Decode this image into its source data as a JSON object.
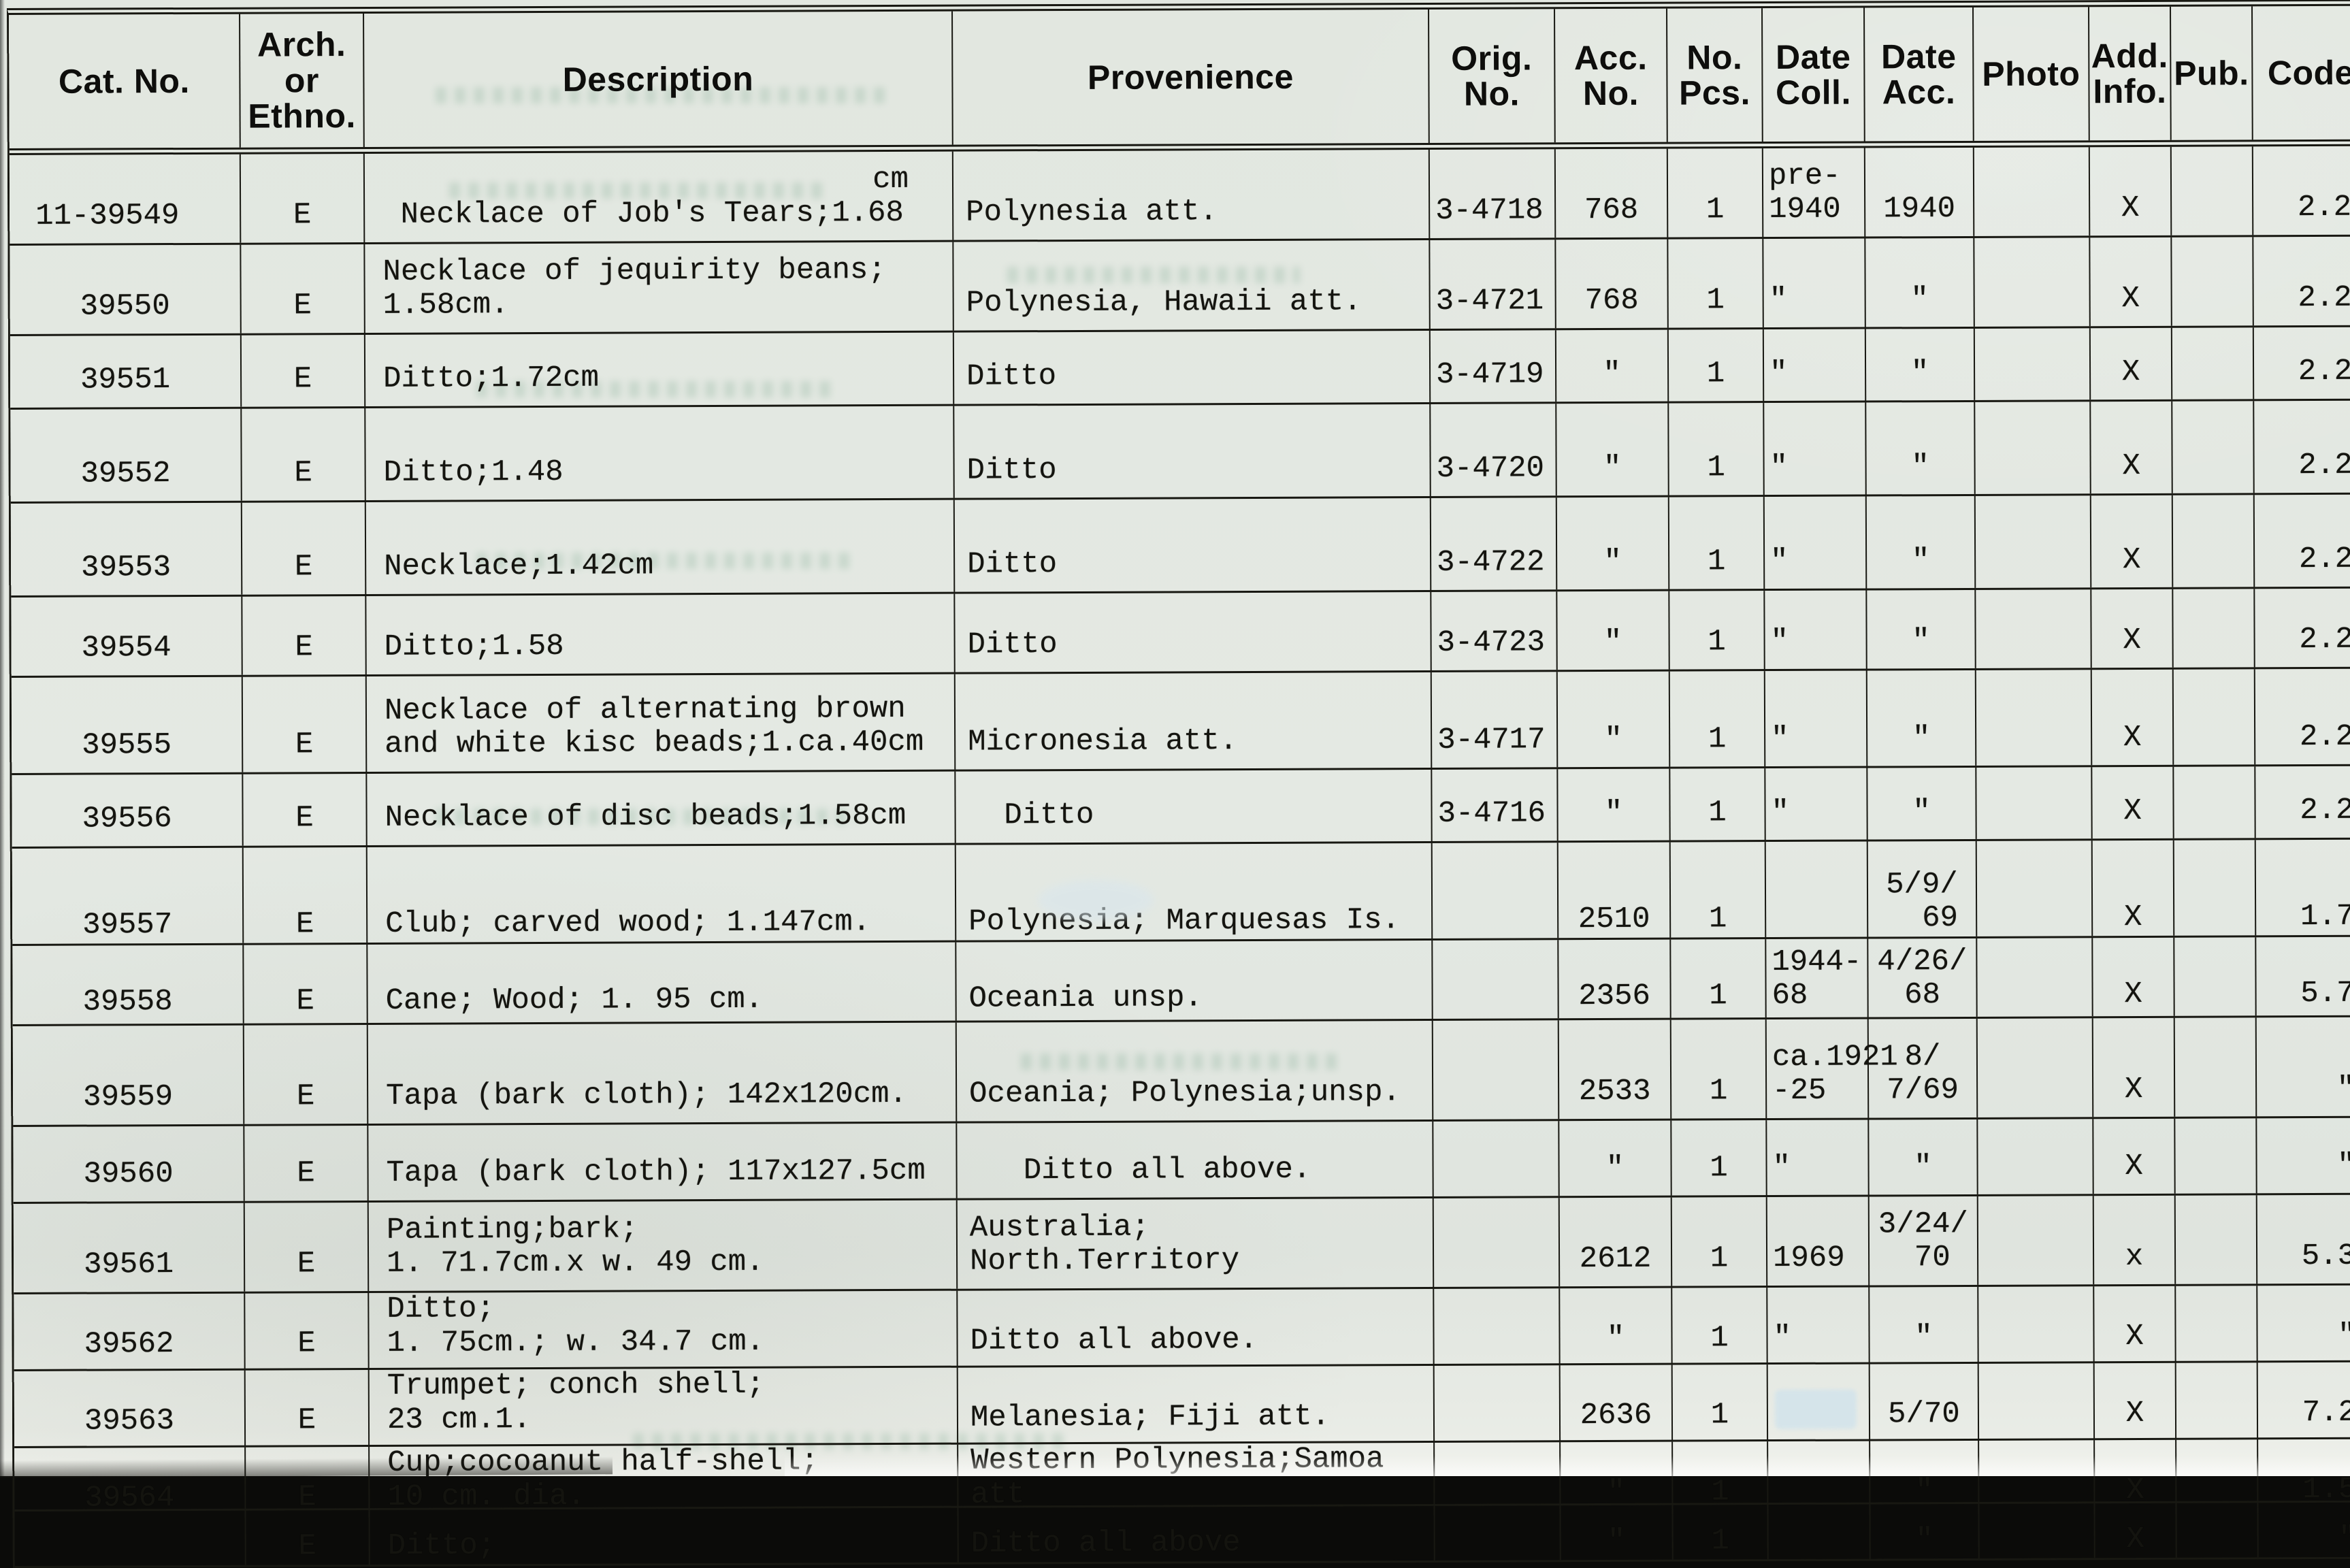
{
  "header": {
    "cols": [
      "Cat. No.",
      "Arch.\nor\nEthno.",
      "Description",
      "Provenience",
      "Orig.\nNo.",
      "Acc.\nNo.",
      "No.\nPcs.",
      "Date\nColl.",
      "Date\nAcc.",
      "Photo",
      "Add.\nInfo.",
      "Pub.",
      "Code"
    ]
  },
  "rows": [
    {
      "cat": "11-39549",
      "arch": "E",
      "desc_top": "cm",
      "desc": " Necklace of Job's Tears;1.68",
      "prov": "Polynesia att.",
      "orig": "3-4718",
      "acc": "768",
      "pcs": "1",
      "dcoll": "pre-\n1940",
      "dacc": "1940",
      "photo": "",
      "add": "X",
      "pub": "",
      "code": "2.2"
    },
    {
      "cat": "39550",
      "arch": "E",
      "desc_top": "",
      "desc": "Necklace of jequirity beans;\n1.58cm.",
      "prov": "Polynesia, Hawaii att.",
      "orig": "3-4721",
      "acc": "768",
      "pcs": "1",
      "dcoll": "\"",
      "dacc": "\"",
      "photo": "",
      "add": "X",
      "pub": "",
      "code": "2.2"
    },
    {
      "cat": "39551",
      "arch": "E",
      "desc_top": "",
      "desc": "Ditto;1.72cm",
      "prov": "Ditto",
      "orig": "3-4719",
      "acc": "\"",
      "pcs": "1",
      "dcoll": "\"",
      "dacc": "\"",
      "photo": "",
      "add": "X",
      "pub": "",
      "code": "2.2"
    },
    {
      "cat": "39552",
      "arch": "E",
      "desc_top": "",
      "desc": "Ditto;1.48",
      "prov": "Ditto",
      "orig": "3-4720",
      "acc": "\"",
      "pcs": "1",
      "dcoll": "\"",
      "dacc": "\"",
      "photo": "",
      "add": "X",
      "pub": "",
      "code": "2.2"
    },
    {
      "cat": "39553",
      "arch": "E",
      "desc_top": "",
      "desc": "Necklace;1.42cm",
      "prov": "Ditto",
      "orig": "3-4722",
      "acc": "\"",
      "pcs": "1",
      "dcoll": "\"",
      "dacc": "\"",
      "photo": "",
      "add": "X",
      "pub": "",
      "code": "2.2"
    },
    {
      "cat": "39554",
      "arch": "E",
      "desc_top": "",
      "desc": "Ditto;1.58",
      "prov": "Ditto",
      "orig": "3-4723",
      "acc": "\"",
      "pcs": "1",
      "dcoll": "\"",
      "dacc": "\"",
      "photo": "",
      "add": "X",
      "pub": "",
      "code": "2.2"
    },
    {
      "cat": "39555",
      "arch": "E",
      "desc_top": "",
      "desc": "Necklace of alternating brown\nand white kisc beads;1.ca.40cm",
      "prov": "Micronesia att.",
      "orig": "3-4717",
      "acc": "\"",
      "pcs": "1",
      "dcoll": "\"",
      "dacc": "\"",
      "photo": "",
      "add": "X",
      "pub": "",
      "code": "2.2"
    },
    {
      "cat": "39556",
      "arch": "E",
      "desc_top": "",
      "desc": "Necklace of disc beads;1.58cm",
      "prov": "  Ditto",
      "orig": "3-4716",
      "acc": "\"",
      "pcs": "1",
      "dcoll": "\"",
      "dacc": "\"",
      "photo": "",
      "add": "X",
      "pub": "",
      "code": "2.2"
    },
    {
      "cat": "39557",
      "arch": "E",
      "desc_top": "",
      "desc": "Club; carved wood; 1.147cm.",
      "prov": "Polynesia; Marquesas Is.",
      "orig": "",
      "acc": "2510",
      "pcs": "1",
      "dcoll": "",
      "dacc": "5/9/\n  69",
      "photo": "",
      "add": "X",
      "pub": "",
      "code": "1.7"
    },
    {
      "cat": "39558",
      "arch": "E",
      "desc_top": "",
      "desc": "Cane; Wood; 1. 95 cm.",
      "prov": "Oceania unsp.",
      "orig": "",
      "acc": "2356",
      "pcs": "1",
      "dcoll": "1944-\n68",
      "dacc": "4/26/\n68",
      "photo": "",
      "add": "X",
      "pub": "",
      "code": "5.7"
    },
    {
      "cat": "39559",
      "arch": "E",
      "desc_top": "",
      "desc": "Tapa (bark cloth); 142x120cm.",
      "prov": "Oceania; Polynesia;unsp.",
      "orig": "",
      "acc": "2533",
      "pcs": "1",
      "dcoll": "ca.1921\n-25",
      "dacc": "8/\n7/69",
      "photo": "",
      "add": "X",
      "pub": "",
      "code": "\""
    },
    {
      "cat": "39560",
      "arch": "E",
      "desc_top": "",
      "desc": "Tapa (bark cloth); 117x127.5cm",
      "prov": "   Ditto all above.",
      "orig": "",
      "acc": "\"",
      "pcs": "1",
      "dcoll": "\"",
      "dacc": "\"",
      "photo": "",
      "add": "X",
      "pub": "",
      "code": "\""
    },
    {
      "cat": "39561",
      "arch": "E",
      "desc_top": "",
      "desc": "Painting;bark;\n1. 71.7cm.x w. 49 cm.",
      "prov": "Australia; North.Territory",
      "orig": "",
      "acc": "2612",
      "pcs": "1",
      "dcoll": "1969",
      "dacc": "3/24/\n 70",
      "photo": "",
      "add": "x",
      "pub": "",
      "code": "5.3"
    },
    {
      "cat": "39562",
      "arch": "E",
      "desc_top": "",
      "desc": "Ditto;\n1. 75cm.; w. 34.7 cm.",
      "prov": "Ditto all above.",
      "orig": "",
      "acc": "\"",
      "pcs": "1",
      "dcoll": "\"",
      "dacc": "\"",
      "photo": "",
      "add": "X",
      "pub": "",
      "code": "\""
    },
    {
      "cat": "39563",
      "arch": "E",
      "desc_top": "",
      "desc": "Trumpet; conch shell;\n23 cm.1.",
      "prov": "Melanesia; Fiji att.",
      "orig": "",
      "acc": "2636",
      "pcs": "1",
      "dcoll": "",
      "dacc": "5/70",
      "photo": "",
      "add": "X",
      "pub": "",
      "code": "7.2"
    },
    {
      "cat": "39564",
      "arch": "E",
      "desc_top": "",
      "desc": "Cup;cocoanut half-shell;\n10 cm. dia.",
      "prov": "Western Polynesia;Samoa att",
      "orig": "",
      "acc": "\"",
      "pcs": "1",
      "dcoll": "",
      "dacc": "\"",
      "photo": "",
      "add": "X",
      "pub": "",
      "code": "1.5"
    },
    {
      "cat": "",
      "arch": "E",
      "desc_top": "",
      "desc": "Ditto;",
      "prov": "Ditto all above",
      "orig": "",
      "acc": "\"",
      "pcs": "1",
      "dcoll": "",
      "dacc": "\"",
      "photo": "",
      "add": "X",
      "pub": "",
      "code": "\""
    }
  ]
}
